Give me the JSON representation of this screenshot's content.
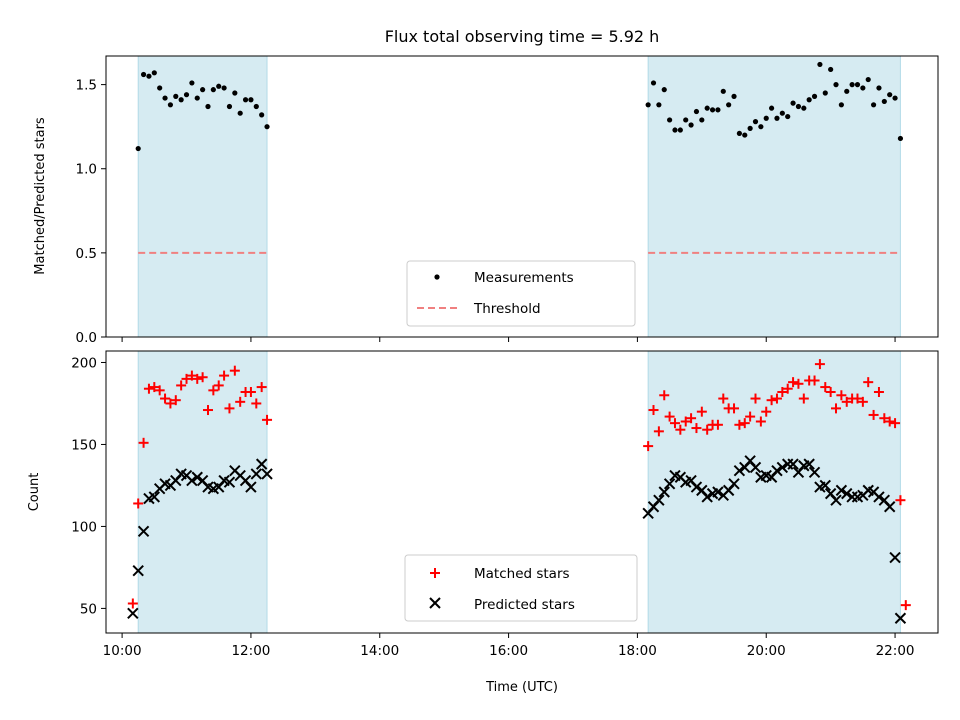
{
  "chart_data": [
    {
      "type": "scatter",
      "title": "Flux total observing time = 5.92 h",
      "ylabel": "Matched/Predicted stars",
      "xlabel": "",
      "ylim": [
        0,
        1.67
      ],
      "yticks": [
        0.0,
        0.5,
        1.0,
        1.5
      ],
      "ytick_labels": [
        "0.0",
        "0.5",
        "1.0",
        "1.5"
      ],
      "grid": false,
      "legend": {
        "placement": "bottom-center",
        "entries": [
          "Measurements",
          "Threshold"
        ]
      },
      "shaded_intervals": [
        [
          "10:15",
          "12:15"
        ],
        [
          "18:10",
          "22:05"
        ]
      ],
      "threshold": 0.5,
      "series": [
        {
          "name": "Measurements",
          "marker": "dot",
          "color": "#000000",
          "points": [
            [
              "10:15",
              1.12
            ],
            [
              "10:20",
              1.56
            ],
            [
              "10:25",
              1.55
            ],
            [
              "10:30",
              1.57
            ],
            [
              "10:35",
              1.48
            ],
            [
              "10:40",
              1.42
            ],
            [
              "10:45",
              1.38
            ],
            [
              "10:50",
              1.43
            ],
            [
              "10:55",
              1.41
            ],
            [
              "11:00",
              1.44
            ],
            [
              "11:05",
              1.51
            ],
            [
              "11:10",
              1.42
            ],
            [
              "11:15",
              1.47
            ],
            [
              "11:20",
              1.37
            ],
            [
              "11:25",
              1.47
            ],
            [
              "11:30",
              1.49
            ],
            [
              "11:35",
              1.48
            ],
            [
              "11:40",
              1.37
            ],
            [
              "11:45",
              1.45
            ],
            [
              "11:50",
              1.33
            ],
            [
              "11:55",
              1.41
            ],
            [
              "12:00",
              1.41
            ],
            [
              "12:05",
              1.37
            ],
            [
              "12:10",
              1.32
            ],
            [
              "12:15",
              1.25
            ],
            [
              "18:10",
              1.38
            ],
            [
              "18:15",
              1.51
            ],
            [
              "18:20",
              1.38
            ],
            [
              "18:25",
              1.47
            ],
            [
              "18:30",
              1.29
            ],
            [
              "18:35",
              1.23
            ],
            [
              "18:40",
              1.23
            ],
            [
              "18:45",
              1.29
            ],
            [
              "18:50",
              1.26
            ],
            [
              "18:55",
              1.34
            ],
            [
              "19:00",
              1.29
            ],
            [
              "19:05",
              1.36
            ],
            [
              "19:10",
              1.35
            ],
            [
              "19:15",
              1.35
            ],
            [
              "19:20",
              1.46
            ],
            [
              "19:25",
              1.38
            ],
            [
              "19:30",
              1.43
            ],
            [
              "19:35",
              1.21
            ],
            [
              "19:40",
              1.2
            ],
            [
              "19:45",
              1.24
            ],
            [
              "19:50",
              1.28
            ],
            [
              "19:55",
              1.25
            ],
            [
              "20:00",
              1.3
            ],
            [
              "20:05",
              1.36
            ],
            [
              "20:10",
              1.3
            ],
            [
              "20:15",
              1.33
            ],
            [
              "20:20",
              1.31
            ],
            [
              "20:25",
              1.39
            ],
            [
              "20:30",
              1.37
            ],
            [
              "20:35",
              1.36
            ],
            [
              "20:40",
              1.41
            ],
            [
              "20:45",
              1.43
            ],
            [
              "20:50",
              1.62
            ],
            [
              "20:55",
              1.45
            ],
            [
              "21:00",
              1.59
            ],
            [
              "21:05",
              1.5
            ],
            [
              "21:10",
              1.38
            ],
            [
              "21:15",
              1.46
            ],
            [
              "21:20",
              1.5
            ],
            [
              "21:25",
              1.5
            ],
            [
              "21:30",
              1.48
            ],
            [
              "21:35",
              1.53
            ],
            [
              "21:40",
              1.38
            ],
            [
              "21:45",
              1.48
            ],
            [
              "21:50",
              1.4
            ],
            [
              "21:55",
              1.44
            ],
            [
              "22:00",
              1.42
            ],
            [
              "22:05",
              1.18
            ]
          ]
        }
      ]
    },
    {
      "type": "scatter",
      "title": "",
      "ylabel": "Count",
      "xlabel": "Time (UTC)",
      "xticks": [
        "10:00",
        "12:00",
        "14:00",
        "16:00",
        "18:00",
        "20:00",
        "22:00"
      ],
      "xlim": [
        "09:45",
        "22:40"
      ],
      "ylim": [
        35,
        207
      ],
      "yticks": [
        50,
        100,
        150,
        200
      ],
      "ytick_labels": [
        "50",
        "100",
        "150",
        "200"
      ],
      "grid": false,
      "legend": {
        "placement": "bottom-center",
        "entries": [
          "Matched stars",
          "Predicted stars"
        ]
      },
      "shaded_intervals": [
        [
          "10:15",
          "12:15"
        ],
        [
          "18:10",
          "22:05"
        ]
      ],
      "series": [
        {
          "name": "Matched stars",
          "marker": "plus",
          "color": "#ff0000",
          "points": [
            [
              "10:10",
              53
            ],
            [
              "10:15",
              114
            ],
            [
              "10:20",
              151
            ],
            [
              "10:25",
              184
            ],
            [
              "10:30",
              185
            ],
            [
              "10:35",
              183
            ],
            [
              "10:40",
              178
            ],
            [
              "10:45",
              175
            ],
            [
              "10:50",
              177
            ],
            [
              "10:55",
              186
            ],
            [
              "11:00",
              190
            ],
            [
              "11:05",
              192
            ],
            [
              "11:10",
              190
            ],
            [
              "11:15",
              191
            ],
            [
              "11:20",
              171
            ],
            [
              "11:25",
              183
            ],
            [
              "11:30",
              186
            ],
            [
              "11:35",
              192
            ],
            [
              "11:40",
              172
            ],
            [
              "11:45",
              195
            ],
            [
              "11:50",
              176
            ],
            [
              "11:55",
              182
            ],
            [
              "12:00",
              182
            ],
            [
              "12:05",
              175
            ],
            [
              "12:10",
              185
            ],
            [
              "12:15",
              165
            ],
            [
              "18:10",
              149
            ],
            [
              "18:15",
              171
            ],
            [
              "18:20",
              158
            ],
            [
              "18:25",
              180
            ],
            [
              "18:30",
              167
            ],
            [
              "18:35",
              163
            ],
            [
              "18:40",
              159
            ],
            [
              "18:45",
              164
            ],
            [
              "18:50",
              166
            ],
            [
              "18:55",
              160
            ],
            [
              "19:00",
              170
            ],
            [
              "19:05",
              159
            ],
            [
              "19:10",
              162
            ],
            [
              "19:15",
              162
            ],
            [
              "19:20",
              178
            ],
            [
              "19:25",
              172
            ],
            [
              "19:30",
              172
            ],
            [
              "19:35",
              162
            ],
            [
              "19:40",
              163
            ],
            [
              "19:45",
              167
            ],
            [
              "19:50",
              178
            ],
            [
              "19:55",
              164
            ],
            [
              "20:00",
              170
            ],
            [
              "20:05",
              177
            ],
            [
              "20:10",
              178
            ],
            [
              "20:15",
              182
            ],
            [
              "20:20",
              184
            ],
            [
              "20:25",
              188
            ],
            [
              "20:30",
              187
            ],
            [
              "20:35",
              178
            ],
            [
              "20:40",
              189
            ],
            [
              "20:45",
              189
            ],
            [
              "20:50",
              199
            ],
            [
              "20:55",
              185
            ],
            [
              "21:00",
              182
            ],
            [
              "21:05",
              172
            ],
            [
              "21:10",
              180
            ],
            [
              "21:15",
              176
            ],
            [
              "21:20",
              178
            ],
            [
              "21:25",
              178
            ],
            [
              "21:30",
              176
            ],
            [
              "21:35",
              188
            ],
            [
              "21:40",
              168
            ],
            [
              "21:45",
              182
            ],
            [
              "21:50",
              166
            ],
            [
              "21:55",
              164
            ],
            [
              "22:00",
              163
            ],
            [
              "22:05",
              116
            ],
            [
              "22:10",
              52
            ]
          ]
        },
        {
          "name": "Predicted stars",
          "marker": "x",
          "color": "#000000",
          "points": [
            [
              "10:10",
              47
            ],
            [
              "10:15",
              73
            ],
            [
              "10:20",
              97
            ],
            [
              "10:25",
              117
            ],
            [
              "10:30",
              118
            ],
            [
              "10:35",
              123
            ],
            [
              "10:40",
              126
            ],
            [
              "10:45",
              125
            ],
            [
              "10:50",
              128
            ],
            [
              "10:55",
              132
            ],
            [
              "11:00",
              131
            ],
            [
              "11:05",
              128
            ],
            [
              "11:10",
              130
            ],
            [
              "11:15",
              128
            ],
            [
              "11:20",
              124
            ],
            [
              "11:25",
              123
            ],
            [
              "11:30",
              124
            ],
            [
              "11:35",
              128
            ],
            [
              "11:40",
              127
            ],
            [
              "11:45",
              134
            ],
            [
              "11:50",
              131
            ],
            [
              "11:55",
              128
            ],
            [
              "12:00",
              124
            ],
            [
              "12:05",
              132
            ],
            [
              "12:10",
              138
            ],
            [
              "12:15",
              132
            ],
            [
              "18:10",
              108
            ],
            [
              "18:15",
              112
            ],
            [
              "18:20",
              116
            ],
            [
              "18:25",
              121
            ],
            [
              "18:30",
              126
            ],
            [
              "18:35",
              131
            ],
            [
              "18:40",
              130
            ],
            [
              "18:45",
              127
            ],
            [
              "18:50",
              128
            ],
            [
              "18:55",
              124
            ],
            [
              "19:00",
              122
            ],
            [
              "19:05",
              118
            ],
            [
              "19:10",
              120
            ],
            [
              "19:15",
              121
            ],
            [
              "19:20",
              119
            ],
            [
              "19:25",
              122
            ],
            [
              "19:30",
              126
            ],
            [
              "19:35",
              134
            ],
            [
              "19:40",
              136
            ],
            [
              "19:45",
              140
            ],
            [
              "19:50",
              136
            ],
            [
              "19:55",
              130
            ],
            [
              "20:00",
              131
            ],
            [
              "20:05",
              130
            ],
            [
              "20:10",
              134
            ],
            [
              "20:15",
              136
            ],
            [
              "20:20",
              138
            ],
            [
              "20:25",
              138
            ],
            [
              "20:30",
              133
            ],
            [
              "20:35",
              137
            ],
            [
              "20:40",
              138
            ],
            [
              "20:45",
              133
            ],
            [
              "20:50",
              124
            ],
            [
              "20:55",
              125
            ],
            [
              "21:00",
              120
            ],
            [
              "21:05",
              116
            ],
            [
              "21:10",
              122
            ],
            [
              "21:15",
              120
            ],
            [
              "21:20",
              118
            ],
            [
              "21:25",
              118
            ],
            [
              "21:30",
              119
            ],
            [
              "21:35",
              122
            ],
            [
              "21:40",
              121
            ],
            [
              "21:45",
              118
            ],
            [
              "21:50",
              116
            ],
            [
              "21:55",
              112
            ],
            [
              "22:00",
              81
            ],
            [
              "22:05",
              44
            ]
          ]
        }
      ]
    }
  ],
  "colors": {
    "shade": "#add8e6",
    "shade_opacity": 0.5,
    "threshold": "#f08080",
    "matched": "#ff0000",
    "predicted": "#000000",
    "measurements": "#000000"
  }
}
